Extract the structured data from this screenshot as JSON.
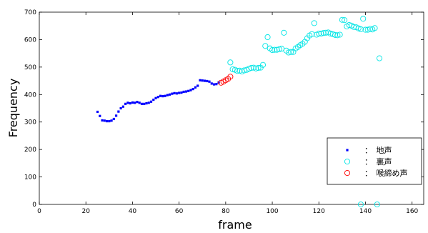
{
  "chart_data": {
    "type": "scatter",
    "title": "",
    "xlabel": "frame",
    "ylabel": "Frequency",
    "xlim": [
      0,
      165
    ],
    "ylim": [
      0,
      700
    ],
    "xticks": [
      "0",
      "20",
      "40",
      "60",
      "80",
      "100",
      "120",
      "140",
      "160"
    ],
    "yticks": [
      "0",
      "100",
      "200",
      "300",
      "400",
      "500",
      "600",
      "700"
    ],
    "grid": false,
    "legend_position": "bottom-right",
    "series": [
      {
        "name": "：　地声",
        "marker": "square",
        "color": "#0000ff",
        "points": [
          [
            25,
            337
          ],
          [
            26,
            322
          ],
          [
            27,
            306
          ],
          [
            28,
            305
          ],
          [
            29,
            303
          ],
          [
            30,
            303
          ],
          [
            31,
            305
          ],
          [
            32,
            311
          ],
          [
            33,
            323
          ],
          [
            34,
            338
          ],
          [
            35,
            350
          ],
          [
            36,
            356
          ],
          [
            37,
            366
          ],
          [
            38,
            370
          ],
          [
            39,
            368
          ],
          [
            40,
            371
          ],
          [
            41,
            370
          ],
          [
            42,
            373
          ],
          [
            43,
            370
          ],
          [
            44,
            366
          ],
          [
            45,
            366
          ],
          [
            46,
            368
          ],
          [
            47,
            370
          ],
          [
            48,
            374
          ],
          [
            49,
            381
          ],
          [
            50,
            387
          ],
          [
            51,
            391
          ],
          [
            52,
            395
          ],
          [
            53,
            394
          ],
          [
            54,
            395
          ],
          [
            55,
            398
          ],
          [
            56,
            400
          ],
          [
            57,
            403
          ],
          [
            58,
            405
          ],
          [
            59,
            404
          ],
          [
            60,
            406
          ],
          [
            61,
            407
          ],
          [
            62,
            410
          ],
          [
            63,
            411
          ],
          [
            64,
            413
          ],
          [
            65,
            416
          ],
          [
            66,
            420
          ],
          [
            67,
            426
          ],
          [
            68,
            432
          ],
          [
            69,
            452
          ],
          [
            70,
            451
          ],
          [
            71,
            450
          ],
          [
            72,
            449
          ],
          [
            73,
            447
          ],
          [
            74,
            440
          ],
          [
            75,
            437
          ],
          [
            76,
            438
          ],
          [
            77,
            444
          ]
        ]
      },
      {
        "name": "：　裏声",
        "marker": "circle",
        "color": "#00e5e5",
        "points": [
          [
            82,
            517
          ],
          [
            83,
            492
          ],
          [
            84,
            490
          ],
          [
            85,
            486
          ],
          [
            86,
            487
          ],
          [
            87,
            484
          ],
          [
            88,
            488
          ],
          [
            89,
            490
          ],
          [
            90,
            494
          ],
          [
            91,
            497
          ],
          [
            92,
            498
          ],
          [
            93,
            495
          ],
          [
            94,
            497
          ],
          [
            95,
            498
          ],
          [
            96,
            508
          ],
          [
            97,
            577
          ],
          [
            98,
            609
          ],
          [
            99,
            568
          ],
          [
            100,
            562
          ],
          [
            101,
            563
          ],
          [
            102,
            563
          ],
          [
            103,
            565
          ],
          [
            104,
            567
          ],
          [
            105,
            625
          ],
          [
            106,
            560
          ],
          [
            107,
            553
          ],
          [
            108,
            555
          ],
          [
            109,
            555
          ],
          [
            110,
            568
          ],
          [
            111,
            573
          ],
          [
            112,
            580
          ],
          [
            113,
            585
          ],
          [
            114,
            592
          ],
          [
            115,
            605
          ],
          [
            116,
            615
          ],
          [
            117,
            620
          ],
          [
            118,
            660
          ],
          [
            119,
            618
          ],
          [
            120,
            622
          ],
          [
            121,
            622
          ],
          [
            122,
            624
          ],
          [
            123,
            625
          ],
          [
            124,
            626
          ],
          [
            125,
            622
          ],
          [
            126,
            620
          ],
          [
            127,
            617
          ],
          [
            128,
            616
          ],
          [
            129,
            618
          ],
          [
            130,
            672
          ],
          [
            131,
            671
          ],
          [
            132,
            648
          ],
          [
            133,
            653
          ],
          [
            134,
            651
          ],
          [
            135,
            646
          ],
          [
            136,
            645
          ],
          [
            137,
            641
          ],
          [
            138,
            638
          ],
          [
            139,
            676
          ],
          [
            140,
            636
          ],
          [
            141,
            636
          ],
          [
            142,
            639
          ],
          [
            143,
            637
          ],
          [
            144,
            642
          ],
          [
            146,
            532
          ],
          [
            138,
            0
          ],
          [
            145,
            0
          ]
        ]
      },
      {
        "name": "：　喉締め声",
        "marker": "circle",
        "color": "#ff0000",
        "points": [
          [
            78,
            443
          ],
          [
            79,
            447
          ],
          [
            80,
            452
          ],
          [
            81,
            457
          ],
          [
            82,
            465
          ]
        ]
      }
    ]
  }
}
